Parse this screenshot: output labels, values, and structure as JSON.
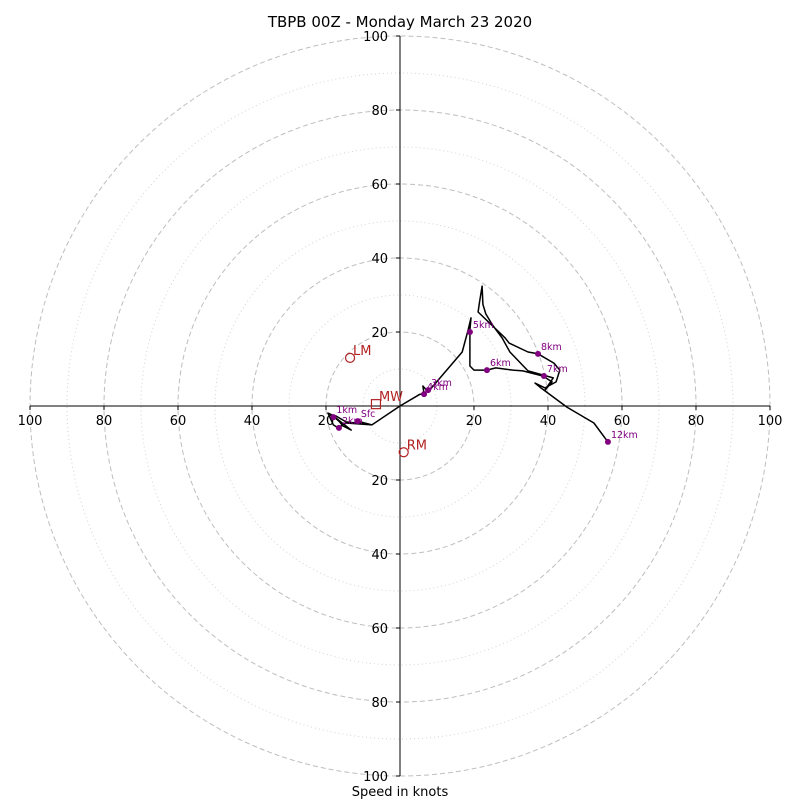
{
  "chart_data": {
    "type": "line",
    "title": "TBPB 00Z - Monday March 23 2020",
    "xlabel": "Speed in knots",
    "ylabel": "",
    "xlim": [
      -100,
      100
    ],
    "ylim": [
      -100,
      100
    ],
    "rings_dashed": [
      20,
      40,
      60,
      80,
      100
    ],
    "rings_dotted": [
      10,
      30,
      50,
      70,
      90
    ],
    "tick_labels": {
      "x": [
        {
          "value": -100,
          "label": "100"
        },
        {
          "value": -80,
          "label": "80"
        },
        {
          "value": -60,
          "label": "60"
        },
        {
          "value": -40,
          "label": "40"
        },
        {
          "value": -20,
          "label": "20"
        },
        {
          "value": 20,
          "label": "20"
        },
        {
          "value": 40,
          "label": "40"
        },
        {
          "value": 60,
          "label": "60"
        },
        {
          "value": 80,
          "label": "80"
        },
        {
          "value": 100,
          "label": "100"
        }
      ],
      "y": [
        {
          "value": 100,
          "label": "100"
        },
        {
          "value": 80,
          "label": "80"
        },
        {
          "value": 60,
          "label": "60"
        },
        {
          "value": 40,
          "label": "40"
        },
        {
          "value": 20,
          "label": "20"
        },
        {
          "value": -20,
          "label": "20"
        },
        {
          "value": -40,
          "label": "40"
        },
        {
          "value": -60,
          "label": "60"
        },
        {
          "value": -80,
          "label": "80"
        },
        {
          "value": -100,
          "label": "100"
        }
      ]
    },
    "hodograph": [
      [
        -11.4,
        -4.1
      ],
      [
        -7.6,
        -5.1
      ],
      [
        -14.6,
        -4.6
      ],
      [
        -16.8,
        -5.9
      ],
      [
        -18,
        -5.1
      ],
      [
        -19.5,
        -1.9
      ],
      [
        -18.4,
        -2.4
      ],
      [
        -16.5,
        -4.1
      ],
      [
        -15.4,
        -5.4
      ],
      [
        -13.2,
        -6.5
      ],
      [
        -18.4,
        -2.4
      ],
      [
        -17.3,
        -2.7
      ],
      [
        -14.6,
        -4.3
      ],
      [
        -7.6,
        -5.1
      ],
      [
        0,
        0
      ],
      [
        5.4,
        3.2
      ],
      [
        6.5,
        3.2
      ],
      [
        6.2,
        5.4
      ],
      [
        7.6,
        3.8
      ],
      [
        12.2,
        9.2
      ],
      [
        16.8,
        14.6
      ],
      [
        18.4,
        20.5
      ],
      [
        19.2,
        23.8
      ],
      [
        18.9,
        20.5
      ],
      [
        18.9,
        10.8
      ],
      [
        20,
        9.7
      ],
      [
        23.5,
        9.7
      ],
      [
        25.9,
        10.3
      ],
      [
        30.5,
        9.7
      ],
      [
        33.2,
        9.5
      ],
      [
        38.6,
        8.1
      ],
      [
        41.1,
        6.5
      ],
      [
        39.2,
        4.3
      ],
      [
        41.4,
        7.6
      ],
      [
        34.6,
        9.5
      ],
      [
        29.7,
        14.6
      ],
      [
        27.6,
        18.4
      ],
      [
        25,
        21.9
      ],
      [
        23.2,
        24.9
      ],
      [
        22.4,
        27.5
      ],
      [
        22.2,
        32.4
      ],
      [
        21.4,
        27.5
      ],
      [
        21.1,
        25.4
      ],
      [
        28.4,
        18.4
      ],
      [
        29.5,
        17
      ],
      [
        34.6,
        14.6
      ],
      [
        37.3,
        14.1
      ],
      [
        41.6,
        11.6
      ],
      [
        43.2,
        9.7
      ],
      [
        42.2,
        6.5
      ],
      [
        39.2,
        4.9
      ],
      [
        36.5,
        6.2
      ],
      [
        37.8,
        5.1
      ],
      [
        45.1,
        -0.3
      ],
      [
        52.4,
        -4.6
      ],
      [
        56.2,
        -9.7
      ]
    ],
    "height_points": [
      {
        "label": "Sfc",
        "x": -11.4,
        "y": -4.1
      },
      {
        "label": "1km",
        "x": -18,
        "y": -3
      },
      {
        "label": "2km",
        "x": -16.5,
        "y": -5.9
      },
      {
        "label": "3km",
        "x": 7.6,
        "y": 4.3
      },
      {
        "label": "4km",
        "x": 6.5,
        "y": 3.2
      },
      {
        "label": "5km",
        "x": 18.9,
        "y": 20
      },
      {
        "label": "6km",
        "x": 23.5,
        "y": 9.7
      },
      {
        "label": "7km",
        "x": 38.9,
        "y": 8.1
      },
      {
        "label": "8km",
        "x": 37.3,
        "y": 14.1
      },
      {
        "label": "12km",
        "x": 56.2,
        "y": -9.7
      }
    ],
    "storm_motion": [
      {
        "label": "LM",
        "x": -13.5,
        "y": 13,
        "marker": "circle"
      },
      {
        "label": "MW",
        "x": -6.5,
        "y": 0.5,
        "marker": "square"
      },
      {
        "label": "RM",
        "x": 1,
        "y": -12.5,
        "marker": "circle"
      }
    ],
    "colors": {
      "line": "#000000",
      "height_marker": "#800080",
      "motion_marker": "#b22222",
      "grid": "#bebebe",
      "axis": "#000000"
    }
  }
}
